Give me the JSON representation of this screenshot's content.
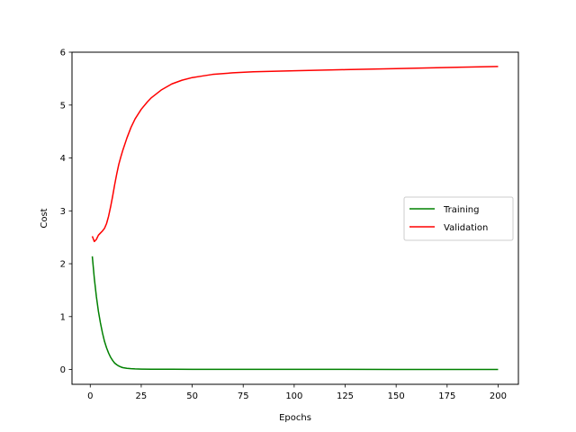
{
  "chart_data": {
    "type": "line",
    "title": "",
    "xlabel": "Epochs",
    "ylabel": "Cost",
    "xlim": [
      -8.95,
      209.95
    ],
    "ylim": [
      -0.28,
      6.0
    ],
    "xticks": [
      0,
      25,
      50,
      75,
      100,
      125,
      150,
      175,
      200
    ],
    "yticks": [
      0,
      1,
      2,
      3,
      4,
      5,
      6
    ],
    "grid": false,
    "legend_position": "center-right",
    "series": [
      {
        "name": "Training",
        "color": "#008000",
        "x": [
          1,
          2,
          3,
          4,
          5,
          6,
          7,
          8,
          9,
          10,
          11,
          12,
          13,
          14,
          15,
          16,
          18,
          20,
          22,
          25,
          30,
          40,
          50,
          75,
          100,
          125,
          150,
          175,
          200
        ],
        "y": [
          2.14,
          1.72,
          1.38,
          1.1,
          0.88,
          0.69,
          0.53,
          0.41,
          0.31,
          0.23,
          0.17,
          0.12,
          0.09,
          0.065,
          0.048,
          0.035,
          0.022,
          0.015,
          0.011,
          0.008,
          0.006,
          0.004,
          0.003,
          0.002,
          0.002,
          0.002,
          0.001,
          0.001,
          0.001
        ]
      },
      {
        "name": "Validation",
        "color": "#ff0000",
        "x": [
          1,
          2,
          3,
          4,
          5,
          6,
          7,
          8,
          9,
          10,
          11,
          12,
          13,
          14,
          15,
          16,
          18,
          20,
          22,
          25,
          28,
          30,
          35,
          40,
          45,
          50,
          55,
          60,
          70,
          80,
          100,
          125,
          150,
          175,
          200
        ],
        "y": [
          2.52,
          2.42,
          2.46,
          2.54,
          2.58,
          2.62,
          2.67,
          2.76,
          2.9,
          3.08,
          3.28,
          3.5,
          3.7,
          3.88,
          4.02,
          4.15,
          4.38,
          4.58,
          4.74,
          4.92,
          5.06,
          5.14,
          5.29,
          5.4,
          5.47,
          5.52,
          5.55,
          5.58,
          5.61,
          5.63,
          5.65,
          5.67,
          5.69,
          5.71,
          5.73
        ]
      }
    ]
  }
}
